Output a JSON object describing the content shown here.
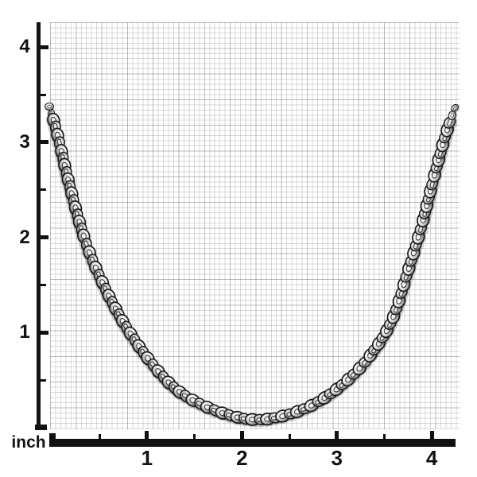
{
  "image": {
    "subject": "silver box-link chain necklace draped in a U curve over inch graph paper",
    "background_color": "#ffffff",
    "grid_fine_line_color": "#d2d2d2",
    "grid_major_line_color": "#b5b5b5",
    "ruler_color": "#111111",
    "chain_colors": {
      "outline": "#1a1a1a",
      "metal_light": "#fbfbfb",
      "metal_mid": "#c4c4c4",
      "metal_dark": "#777777"
    }
  },
  "ruler": {
    "unit_label": "inch",
    "left_axis": {
      "labels": [
        "4",
        "3",
        "2",
        "1"
      ]
    },
    "bottom_axis": {
      "labels": [
        "1",
        "2",
        "3",
        "4"
      ]
    }
  }
}
